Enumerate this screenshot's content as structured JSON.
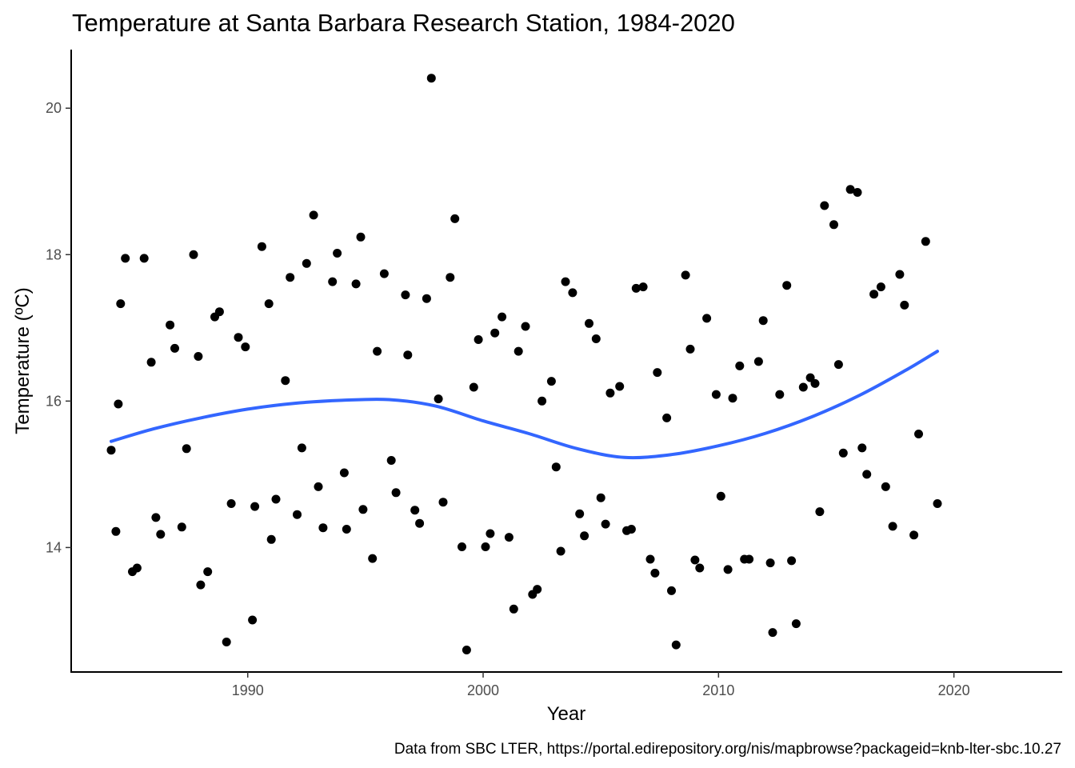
{
  "chart_data": {
    "type": "scatter",
    "title": "Temperature at Santa Barbara Research Station, 1984-2020",
    "xlabel": "Year",
    "ylabel": "Temperature (ºC)",
    "caption": "Data from SBC LTER, https://portal.edirepository.org/nis/mapbrowse?packageid=knb-lter-sbc.10.27",
    "xlim": [
      1982.5,
      2024.6
    ],
    "ylim": [
      12.3,
      20.8
    ],
    "x_ticks": [
      1990,
      2000,
      2010,
      2020
    ],
    "y_ticks": [
      14,
      16,
      18,
      20
    ],
    "grid": false,
    "point_color": "#000000",
    "smooth_color": "#3366ff",
    "points": [
      [
        1984.2,
        15.33
      ],
      [
        1984.4,
        14.22
      ],
      [
        1984.5,
        15.96
      ],
      [
        1984.6,
        17.33
      ],
      [
        1984.8,
        17.95
      ],
      [
        1985.1,
        13.67
      ],
      [
        1985.3,
        13.72
      ],
      [
        1985.6,
        17.95
      ],
      [
        1985.9,
        16.53
      ],
      [
        1986.1,
        14.41
      ],
      [
        1986.3,
        14.18
      ],
      [
        1986.7,
        17.04
      ],
      [
        1986.9,
        16.72
      ],
      [
        1987.2,
        14.28
      ],
      [
        1987.4,
        15.35
      ],
      [
        1987.7,
        18.0
      ],
      [
        1987.9,
        16.61
      ],
      [
        1988.0,
        13.49
      ],
      [
        1988.3,
        13.67
      ],
      [
        1988.6,
        17.15
      ],
      [
        1988.8,
        17.22
      ],
      [
        1989.1,
        12.71
      ],
      [
        1989.3,
        14.6
      ],
      [
        1989.6,
        16.87
      ],
      [
        1989.9,
        16.74
      ],
      [
        1990.2,
        13.01
      ],
      [
        1990.3,
        14.56
      ],
      [
        1990.6,
        18.11
      ],
      [
        1990.9,
        17.33
      ],
      [
        1991.0,
        14.11
      ],
      [
        1991.2,
        14.66
      ],
      [
        1991.6,
        16.28
      ],
      [
        1991.8,
        17.69
      ],
      [
        1992.1,
        14.45
      ],
      [
        1992.3,
        15.36
      ],
      [
        1992.5,
        17.88
      ],
      [
        1992.8,
        18.54
      ],
      [
        1993.0,
        14.83
      ],
      [
        1993.2,
        14.27
      ],
      [
        1993.6,
        17.63
      ],
      [
        1993.8,
        18.02
      ],
      [
        1994.1,
        15.02
      ],
      [
        1994.2,
        14.25
      ],
      [
        1994.6,
        17.6
      ],
      [
        1994.8,
        18.24
      ],
      [
        1994.9,
        14.52
      ],
      [
        1995.3,
        13.85
      ],
      [
        1995.5,
        16.68
      ],
      [
        1995.8,
        17.74
      ],
      [
        1996.1,
        15.19
      ],
      [
        1996.3,
        14.75
      ],
      [
        1996.7,
        17.45
      ],
      [
        1996.8,
        16.63
      ],
      [
        1997.1,
        14.51
      ],
      [
        1997.3,
        14.33
      ],
      [
        1997.6,
        17.4
      ],
      [
        1997.8,
        20.41
      ],
      [
        1998.1,
        16.03
      ],
      [
        1998.3,
        14.62
      ],
      [
        1998.6,
        17.69
      ],
      [
        1998.8,
        18.49
      ],
      [
        1999.1,
        14.01
      ],
      [
        1999.3,
        12.6
      ],
      [
        1999.6,
        16.19
      ],
      [
        1999.8,
        16.84
      ],
      [
        2000.1,
        14.01
      ],
      [
        2000.3,
        14.19
      ],
      [
        2000.5,
        16.93
      ],
      [
        2000.8,
        17.15
      ],
      [
        2001.1,
        14.14
      ],
      [
        2001.3,
        13.16
      ],
      [
        2001.5,
        16.68
      ],
      [
        2001.8,
        17.02
      ],
      [
        2002.1,
        13.36
      ],
      [
        2002.3,
        13.43
      ],
      [
        2002.5,
        16.0
      ],
      [
        2002.9,
        16.27
      ],
      [
        2003.1,
        15.1
      ],
      [
        2003.3,
        13.95
      ],
      [
        2003.5,
        17.63
      ],
      [
        2003.8,
        17.48
      ],
      [
        2004.1,
        14.46
      ],
      [
        2004.3,
        14.16
      ],
      [
        2004.5,
        17.06
      ],
      [
        2004.8,
        16.85
      ],
      [
        2005.0,
        14.68
      ],
      [
        2005.2,
        14.32
      ],
      [
        2005.4,
        16.11
      ],
      [
        2005.8,
        16.2
      ],
      [
        2006.1,
        14.23
      ],
      [
        2006.3,
        14.25
      ],
      [
        2006.5,
        17.54
      ],
      [
        2006.8,
        17.56
      ],
      [
        2007.1,
        13.84
      ],
      [
        2007.3,
        13.65
      ],
      [
        2007.4,
        16.39
      ],
      [
        2007.8,
        15.77
      ],
      [
        2008.0,
        13.41
      ],
      [
        2008.2,
        12.67
      ],
      [
        2008.6,
        17.72
      ],
      [
        2008.8,
        16.71
      ],
      [
        2009.0,
        13.83
      ],
      [
        2009.2,
        13.72
      ],
      [
        2009.5,
        17.13
      ],
      [
        2009.9,
        16.09
      ],
      [
        2010.1,
        14.7
      ],
      [
        2010.4,
        13.7
      ],
      [
        2010.6,
        16.04
      ],
      [
        2010.9,
        16.48
      ],
      [
        2011.1,
        13.84
      ],
      [
        2011.3,
        13.84
      ],
      [
        2011.7,
        16.54
      ],
      [
        2011.9,
        17.1
      ],
      [
        2012.2,
        13.79
      ],
      [
        2012.3,
        12.84
      ],
      [
        2012.6,
        16.09
      ],
      [
        2012.9,
        17.58
      ],
      [
        2013.1,
        13.82
      ],
      [
        2013.3,
        12.96
      ],
      [
        2013.6,
        16.19
      ],
      [
        2013.9,
        16.32
      ],
      [
        2014.1,
        16.24
      ],
      [
        2014.3,
        14.49
      ],
      [
        2014.5,
        18.67
      ],
      [
        2014.9,
        18.41
      ],
      [
        2015.1,
        16.5
      ],
      [
        2015.3,
        15.29
      ],
      [
        2015.6,
        18.89
      ],
      [
        2015.9,
        18.85
      ],
      [
        2016.1,
        15.36
      ],
      [
        2016.3,
        15.0
      ],
      [
        2016.6,
        17.46
      ],
      [
        2016.9,
        17.56
      ],
      [
        2017.1,
        14.83
      ],
      [
        2017.4,
        14.29
      ],
      [
        2017.7,
        17.73
      ],
      [
        2017.9,
        17.31
      ],
      [
        2018.3,
        14.17
      ],
      [
        2018.5,
        15.55
      ],
      [
        2018.8,
        18.18
      ],
      [
        2019.3,
        14.6
      ]
    ],
    "smooth": [
      [
        1984.2,
        15.45
      ],
      [
        1986,
        15.62
      ],
      [
        1988,
        15.77
      ],
      [
        1990,
        15.89
      ],
      [
        1992,
        15.97
      ],
      [
        1994,
        16.01
      ],
      [
        1996,
        16.02
      ],
      [
        1998,
        15.93
      ],
      [
        2000,
        15.73
      ],
      [
        2002,
        15.55
      ],
      [
        2004,
        15.35
      ],
      [
        2006,
        15.23
      ],
      [
        2008,
        15.27
      ],
      [
        2010,
        15.39
      ],
      [
        2012,
        15.56
      ],
      [
        2014,
        15.79
      ],
      [
        2016,
        16.08
      ],
      [
        2018,
        16.43
      ],
      [
        2019.3,
        16.68
      ]
    ]
  }
}
